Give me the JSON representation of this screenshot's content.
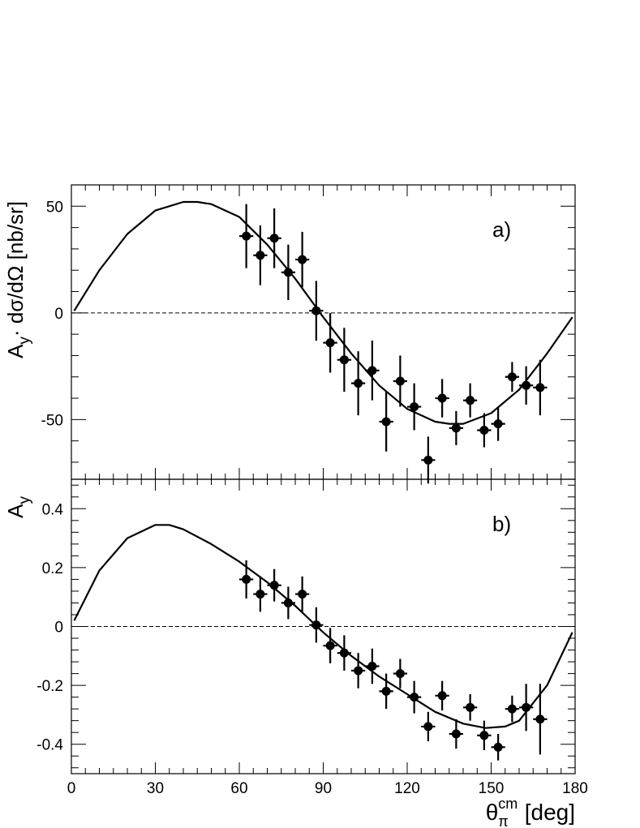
{
  "chart_data": [
    {
      "panel_label": "a)",
      "type": "scatter",
      "ylabel": "A",
      "ylabel_sub": "y",
      "ylabel_rest": "· dσ/dΩ [nb/sr]",
      "xlim": [
        0,
        180
      ],
      "ylim": [
        -78,
        60
      ],
      "ytick_values": [
        50,
        0,
        -50
      ],
      "ytick_labels": [
        "50",
        "0",
        "-50"
      ],
      "zero_line": "dashed",
      "series": [
        {
          "type": "points_with_error_bars",
          "x": [
            62.5,
            67.5,
            72.5,
            77.5,
            82.5,
            87.5,
            92.5,
            97.5,
            102.5,
            107.5,
            112.5,
            117.5,
            122.5,
            127.5,
            132.5,
            137.5,
            142.5,
            147.5,
            152.5,
            157.5,
            162.5,
            167.5
          ],
          "y": [
            36,
            27,
            35,
            19,
            25,
            1,
            -14,
            -22,
            -33,
            -27,
            -51,
            -32,
            -44,
            -69,
            -40,
            -54,
            -41,
            -55,
            -52,
            -30,
            -34,
            -35
          ],
          "yerr": [
            15,
            14,
            14,
            13,
            13,
            14,
            14,
            15,
            15,
            14,
            14,
            12,
            11,
            11,
            9,
            8,
            8,
            8,
            8,
            7,
            9,
            13
          ]
        },
        {
          "type": "line",
          "x": [
            1,
            10,
            20,
            30,
            40,
            45,
            50,
            60,
            70,
            80,
            90,
            100,
            110,
            120,
            130,
            135,
            140,
            150,
            160,
            170,
            179
          ],
          "y": [
            1,
            20,
            37,
            48,
            52,
            52,
            51,
            45,
            32,
            16,
            -2,
            -19,
            -34,
            -45,
            -51,
            -52,
            -52,
            -47,
            -36,
            -19,
            -2
          ]
        }
      ]
    },
    {
      "panel_label": "b)",
      "type": "scatter",
      "ylabel": "A",
      "ylabel_sub": "y",
      "ylabel_rest": "",
      "xlim": [
        0,
        180
      ],
      "ylim": [
        -0.5,
        0.5
      ],
      "ytick_values": [
        0.4,
        0.2,
        0,
        -0.2,
        -0.4
      ],
      "ytick_labels": [
        "0.4",
        "0.2",
        "0",
        "-0.2",
        "-0.4"
      ],
      "xtick_values": [
        0,
        30,
        60,
        90,
        120,
        150,
        180
      ],
      "xtick_labels": [
        "0",
        "30",
        "60",
        "90",
        "120",
        "150",
        "180"
      ],
      "xlabel": "θ",
      "xlabel_sub": "π",
      "xlabel_sup": "cm",
      "xlabel_rest": "[deg]",
      "zero_line": "dashed",
      "series": [
        {
          "type": "points_with_error_bars",
          "x": [
            62.5,
            67.5,
            72.5,
            77.5,
            82.5,
            87.5,
            92.5,
            97.5,
            102.5,
            107.5,
            112.5,
            117.5,
            122.5,
            127.5,
            132.5,
            137.5,
            142.5,
            147.5,
            152.5,
            157.5,
            162.5,
            167.5
          ],
          "y": [
            0.16,
            0.11,
            0.14,
            0.08,
            0.11,
            0.005,
            -0.065,
            -0.09,
            -0.15,
            -0.135,
            -0.22,
            -0.16,
            -0.24,
            -0.34,
            -0.235,
            -0.365,
            -0.275,
            -0.37,
            -0.41,
            -0.28,
            -0.275,
            -0.315
          ],
          "yerr": [
            0.065,
            0.06,
            0.055,
            0.055,
            0.06,
            0.06,
            0.06,
            0.06,
            0.06,
            0.06,
            0.06,
            0.05,
            0.055,
            0.05,
            0.05,
            0.05,
            0.045,
            0.05,
            0.045,
            0.045,
            0.08,
            0.12
          ]
        },
        {
          "type": "line",
          "x": [
            1,
            10,
            20,
            30,
            35,
            40,
            50,
            60,
            70,
            80,
            90,
            100,
            110,
            120,
            130,
            140,
            148,
            155,
            160,
            170,
            179
          ],
          "y": [
            0.02,
            0.19,
            0.3,
            0.345,
            0.345,
            0.33,
            0.28,
            0.22,
            0.15,
            0.07,
            -0.02,
            -0.1,
            -0.17,
            -0.23,
            -0.29,
            -0.33,
            -0.345,
            -0.34,
            -0.32,
            -0.2,
            -0.02
          ]
        }
      ]
    }
  ]
}
